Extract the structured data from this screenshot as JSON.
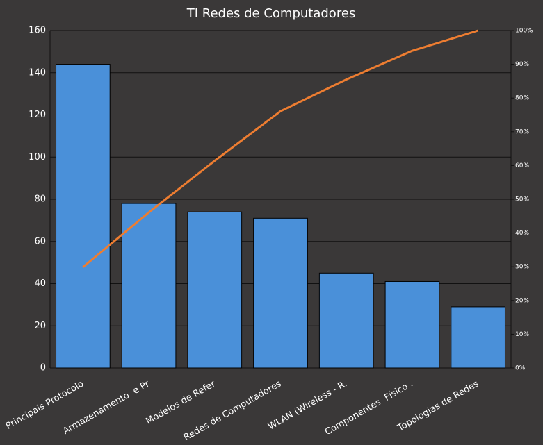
{
  "chart_data": {
    "type": "bar",
    "title": "TI Redes de Computadores",
    "categories": [
      "Principais Protocolo",
      "Armazenamento  e Pr",
      "Modelos de Refer",
      "Redes de Computadores",
      "WLAN (Wireless - R.",
      "Componentes  Físico .",
      "Topologias de Redes"
    ],
    "series": [
      {
        "type": "bar",
        "color": "#4a90d9",
        "values": [
          144,
          78,
          74,
          71,
          45,
          41,
          29
        ]
      },
      {
        "type": "line",
        "axis": "y2",
        "color": "#ed7d31",
        "values": [
          29.9,
          46.1,
          61.4,
          76.1,
          85.5,
          94.0,
          100
        ]
      }
    ],
    "ylim": [
      0,
      160
    ],
    "yticks": [
      0,
      20,
      40,
      60,
      80,
      100,
      120,
      140,
      160
    ],
    "y2lim": [
      0,
      100
    ],
    "y2ticks": [
      {
        "value": 0,
        "label": "0%"
      },
      {
        "value": 10,
        "label": "10%"
      },
      {
        "value": 20,
        "label": "20%"
      },
      {
        "value": 30,
        "label": "30%"
      },
      {
        "value": 40,
        "label": "40%"
      },
      {
        "value": 50,
        "label": "50%"
      },
      {
        "value": 60,
        "label": "60%"
      },
      {
        "value": 70,
        "label": "70%"
      },
      {
        "value": 80,
        "label": "80%"
      },
      {
        "value": 90,
        "label": "90%"
      },
      {
        "value": 100,
        "label": "100%"
      }
    ],
    "grid": true
  }
}
